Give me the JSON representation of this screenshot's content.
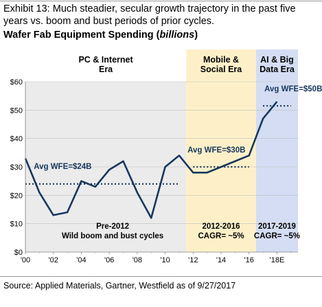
{
  "header": {
    "exhibit": "Exhibit 13: Much steadier, secular growth trajectory in the past five years vs. boom and bust periods of prior cycles.",
    "title_main": "Wafer Fab Equipment Spending (",
    "title_unit": "billions",
    "title_end": ")"
  },
  "footer": {
    "source": "Source: Applied Materials, Gartner, Westfield as of 9/27/2017"
  },
  "colors": {
    "line": "#17375e",
    "era1_bg": "#ebebeb",
    "era2_bg": "#fdf0c8",
    "era3_bg": "#d4ddf3",
    "text_accent": "#17375e"
  },
  "chart_data": {
    "type": "line",
    "title": "Wafer Fab Equipment Spending (billions)",
    "xlabel": "",
    "ylabel": "",
    "ylim": [
      0,
      60
    ],
    "yticks": [
      "$0",
      "$10",
      "$20",
      "$30",
      "$40",
      "$50",
      "$60"
    ],
    "ytick_values": [
      0,
      10,
      20,
      30,
      40,
      50,
      60
    ],
    "xticks": [
      "'00",
      "'02",
      "'04",
      "'06",
      "'08",
      "'10",
      "'12",
      "'14",
      "'16",
      "'18E"
    ],
    "xtick_values": [
      2000,
      2002,
      2004,
      2006,
      2008,
      2010,
      2012,
      2014,
      2016,
      2018
    ],
    "xlim": [
      2000,
      2019.5
    ],
    "grid": true,
    "series": [
      {
        "x": [
          2000,
          2001,
          2002,
          2003,
          2004,
          2005,
          2006,
          2007,
          2008,
          2009,
          2010,
          2011,
          2012,
          2013,
          2014,
          2015,
          2016,
          2017,
          2018
        ],
        "values": [
          33,
          21,
          13,
          14,
          25,
          23,
          29,
          32,
          21,
          12,
          30,
          34,
          28,
          28,
          30,
          32,
          34,
          47,
          53
        ]
      }
    ],
    "segments": [
      {
        "x": [
          2016.5,
          2017.5
        ],
        "values": [
          47,
          50
        ]
      },
      {
        "x": [
          2017.8,
          2018.4
        ],
        "values": [
          50,
          53
        ]
      }
    ],
    "averages": [
      {
        "label": "Avg WFE=$24B",
        "value": 24,
        "x_from": 2000,
        "x_to": 2011
      },
      {
        "label": "Avg WFE=$30B",
        "value": 30,
        "x_from": 2012,
        "x_to": 2016
      },
      {
        "label": "Avg WFE=$50B+",
        "value": 51.5,
        "x_from": 2017,
        "x_to": 2019
      }
    ],
    "eras": [
      {
        "title": [
          "PC & Internet",
          "Era"
        ],
        "x_from": 2000,
        "x_to": 2011.5,
        "note": [
          "Pre-2012",
          "Wild boom and bust cycles"
        ]
      },
      {
        "title": [
          "Mobile &",
          "Social Era"
        ],
        "x_from": 2011.5,
        "x_to": 2016.5,
        "note": [
          "2012-2016",
          "CAGR= ~5%"
        ]
      },
      {
        "title": [
          "AI & Big",
          "Data Era"
        ],
        "x_from": 2016.5,
        "x_to": 2019.5,
        "note": [
          "2017-2019",
          "CAGR= ~5%"
        ]
      }
    ]
  }
}
